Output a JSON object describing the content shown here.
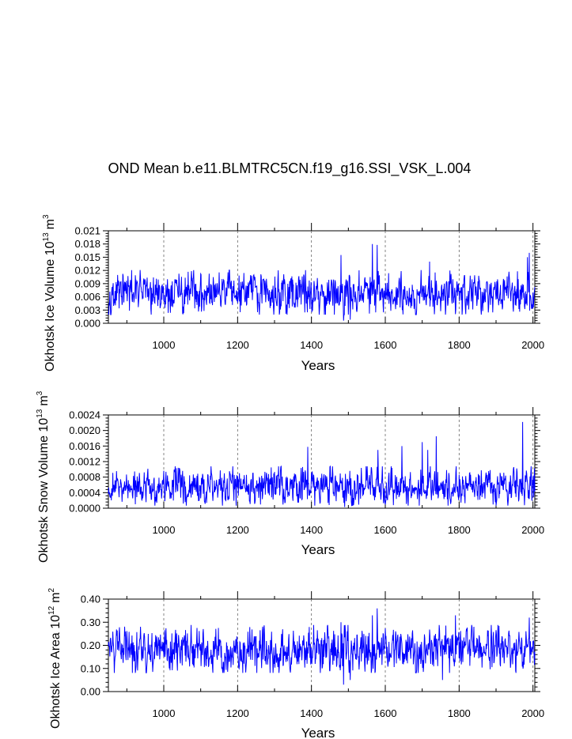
{
  "title": "OND Mean b.e11.BLMTRC5CN.f19_g16.SSI_VSK_L.004",
  "chart_data": [
    {
      "type": "line",
      "ylabel_text": "Okhotsk Ice Volume 10",
      "ylabel_exp1": "13",
      "ylabel_unit": "m",
      "ylabel_exp2": "3",
      "xlabel": "Years",
      "xlim": [
        850,
        2005
      ],
      "ylim": [
        0,
        0.021
      ],
      "xticks": [
        1000,
        1200,
        1400,
        1600,
        1800,
        2000
      ],
      "xtick_labels": [
        "1000",
        "1200",
        "1400",
        "1600",
        "1800",
        "2000"
      ],
      "yticks": [
        0,
        0.003,
        0.006,
        0.009,
        0.012,
        0.015,
        0.018,
        0.021
      ],
      "ytick_labels": [
        "0.000",
        "0.003",
        "0.006",
        "0.009",
        "0.012",
        "0.015",
        "0.018",
        "0.021"
      ],
      "gridlines_x": [
        1000,
        1200,
        1400,
        1600,
        1800,
        2000
      ],
      "line_color": "#0000ff",
      "series": [
        {
          "name": "Okhotsk Ice Volume",
          "x_start": 850,
          "x_step": 1,
          "mean": 0.0068,
          "sd": 0.0022,
          "peaks": [
            [
              1480,
              0.0155
            ],
            [
              1565,
              0.018
            ],
            [
              1578,
              0.0178
            ],
            [
              1990,
              0.016
            ],
            [
              1985,
              0.015
            ],
            [
              1720,
              0.014
            ]
          ],
          "troughs": [
            [
              1487,
              0.0006
            ],
            [
              1505,
              0.0008
            ]
          ]
        }
      ]
    },
    {
      "type": "line",
      "ylabel_text": "Okhotsk Snow Volume 10",
      "ylabel_exp1": "13",
      "ylabel_unit": "m",
      "ylabel_exp2": "3",
      "xlabel": "Years",
      "xlim": [
        850,
        2005
      ],
      "ylim": [
        0,
        0.0024
      ],
      "xticks": [
        1000,
        1200,
        1400,
        1600,
        1800,
        2000
      ],
      "xtick_labels": [
        "1000",
        "1200",
        "1400",
        "1600",
        "1800",
        "2000"
      ],
      "yticks": [
        0,
        0.0004,
        0.0008,
        0.0012,
        0.0016,
        0.002,
        0.0024
      ],
      "ytick_labels": [
        "0.0000",
        "0.0004",
        "0.0008",
        "0.0012",
        "0.0016",
        "0.0020",
        "0.0024"
      ],
      "gridlines_x": [
        1000,
        1200,
        1400,
        1600,
        1800,
        2000
      ],
      "line_color": "#0000ff",
      "series": [
        {
          "name": "Okhotsk Snow Volume",
          "x_start": 850,
          "x_step": 1,
          "mean": 0.00055,
          "sd": 0.00022,
          "peaks": [
            [
              1972,
              0.00222
            ],
            [
              1738,
              0.00185
            ],
            [
              1645,
              0.0016
            ],
            [
              1390,
              0.00158
            ],
            [
              1700,
              0.0017
            ],
            [
              1715,
              0.0015
            ],
            [
              1580,
              0.0015
            ]
          ],
          "troughs": [
            [
              1490,
              3e-05
            ]
          ]
        }
      ]
    },
    {
      "type": "line",
      "ylabel_text": "Okhotsk Ice Area 10",
      "ylabel_exp1": "12",
      "ylabel_unit": "m",
      "ylabel_exp2": "2",
      "xlabel": "Years",
      "xlim": [
        850,
        2005
      ],
      "ylim": [
        0,
        0.4
      ],
      "xticks": [
        1000,
        1200,
        1400,
        1600,
        1800,
        2000
      ],
      "xtick_labels": [
        "1000",
        "1200",
        "1400",
        "1600",
        "1800",
        "2000"
      ],
      "yticks": [
        0,
        0.1,
        0.2,
        0.3,
        0.4
      ],
      "ytick_labels": [
        "0.00",
        "0.10",
        "0.20",
        "0.30",
        "0.40"
      ],
      "gridlines_x": [
        1000,
        1200,
        1400,
        1600,
        1800,
        2000
      ],
      "line_color": "#0000ff",
      "series": [
        {
          "name": "Okhotsk Ice Area",
          "x_start": 850,
          "x_step": 1,
          "mean": 0.18,
          "sd": 0.045,
          "peaks": [
            [
              1578,
              0.36
            ],
            [
              1565,
              0.33
            ],
            [
              1790,
              0.33
            ],
            [
              1990,
              0.32
            ],
            [
              1480,
              0.3
            ]
          ],
          "troughs": [
            [
              1487,
              0.03
            ],
            [
              1505,
              0.05
            ],
            [
              1755,
              0.05
            ]
          ]
        }
      ]
    }
  ]
}
